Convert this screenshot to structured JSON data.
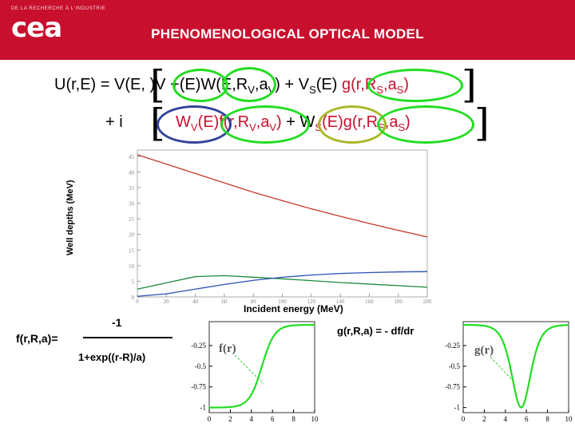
{
  "header": {
    "small_text": "DE LA RECHERCHE À L'INDUSTRIE",
    "logo": "cea",
    "title": "PHENOMENOLOGICAL OPTICAL MODEL"
  },
  "equation": {
    "line1_lhs": "U(r,E) = V(E, )V +(E)W(E,R",
    "line1_fr": "f(r,R",
    "line1_sub_v": "V",
    "line1_av": ",a",
    "line1_close": ")",
    "line1_plus_vs": "+ V",
    "line1_vs_sub": "S",
    "line1_vs_e": "(E)",
    "line1_g": "g(r,R",
    "line1_sub_s": "S",
    "line1_as": ",a",
    "line2_plus_i": "+ i",
    "line2_wv": "W",
    "line2_wv_e": "(E)",
    "line2_f": "f(r,R",
    "line2_plus_ws": "+ W",
    "line2_ws_e": "(E)",
    "line2_g": "g(r,R"
  },
  "chart_data": {
    "type": "line",
    "ylabel": "Well depths (MeV)",
    "xlabel": "Incident energy (MeV)",
    "x_ticks": [
      "0",
      "20",
      "40",
      "60",
      "80",
      "100",
      "120",
      "140",
      "160",
      "180",
      "200"
    ],
    "y_ticks": [
      "0",
      "5",
      "10",
      "15",
      "20",
      "25",
      "30",
      "35",
      "40",
      "45"
    ],
    "xlim": [
      0,
      200
    ],
    "ylim": [
      0,
      47
    ],
    "series": [
      {
        "color": "#c0392b",
        "x": [
          0,
          20,
          40,
          60,
          80,
          100,
          120,
          140,
          160,
          180,
          200
        ],
        "values": [
          45.5,
          42.5,
          39.5,
          36.5,
          33.5,
          30.8,
          28.2,
          25.8,
          23.5,
          21.3,
          19.2
        ]
      },
      {
        "color": "#1a8a3a",
        "x": [
          0,
          20,
          40,
          60,
          80,
          100,
          120,
          140,
          160,
          180,
          200
        ],
        "values": [
          2.5,
          4.5,
          6.5,
          6.8,
          6.3,
          5.8,
          5.2,
          4.6,
          4.1,
          3.6,
          3.1
        ]
      },
      {
        "color": "#2c4fb5",
        "x": [
          0,
          20,
          40,
          60,
          80,
          100,
          120,
          140,
          160,
          180,
          200
        ],
        "values": [
          0.2,
          1.0,
          2.5,
          4.0,
          5.3,
          6.3,
          7.0,
          7.5,
          7.8,
          8.0,
          8.1
        ]
      }
    ]
  },
  "fermi": {
    "label": "f(r,R,a)=",
    "numerator": "-1",
    "denominator": "1+exp((r-R)/a)",
    "plot_label": "f(r)",
    "y_ticks": [
      "-0.25",
      "-0.5",
      "-0.75",
      "-1"
    ],
    "x_ticks": [
      "0",
      "2",
      "4",
      "6",
      "8",
      "10"
    ]
  },
  "deriv": {
    "label": "g(r,R,a) = - df/dr",
    "plot_label": "g(r)",
    "y_ticks": [
      "-0.25",
      "-0.5",
      "-0.75",
      "-1"
    ],
    "x_ticks": [
      "0",
      "2",
      "4",
      "6",
      "8",
      "10"
    ]
  },
  "colors": {
    "brand_red": "#c8102e",
    "highlight_green": "#22dd22",
    "highlight_blue": "#334499",
    "highlight_olive": "#a8b828"
  }
}
